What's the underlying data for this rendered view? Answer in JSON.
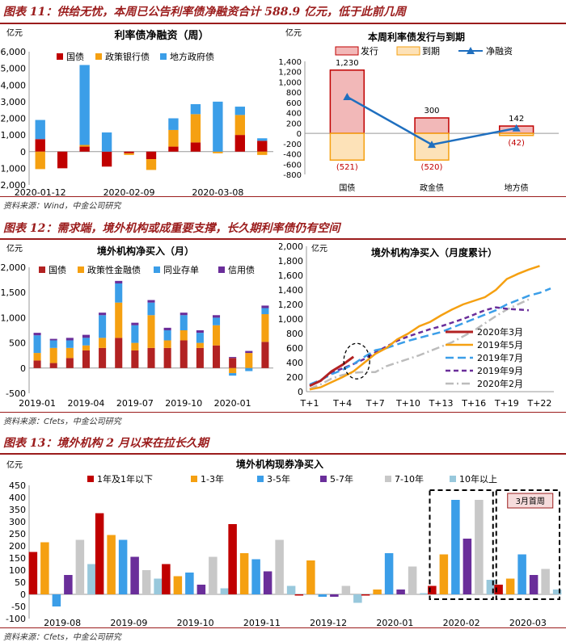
{
  "fig11": {
    "title": "图表 11：供给无忧，本周已公告利率债净融资合计 588.9 亿元，低于此前几周",
    "source": "资料来源：Wind，中金公司研究"
  },
  "fig12": {
    "title": "图表 12：需求端，境外机构或成重要支撑，长久期利率债仍有空间",
    "source": "资料来源：Cfets，中金公司研究"
  },
  "fig13": {
    "title": "图表 13：境外机构 2 月以来在拉长久期",
    "source": "资料来源：Cfets，中金公司研究"
  },
  "colors": {
    "red": "#c00000",
    "orange": "#f5a011",
    "blue": "#3b9ee8",
    "purple": "#6a2e9a",
    "gray": "#c8c8c8",
    "lightblue": "#98c8dc",
    "darkred": "#b22222",
    "grayline": "#bcbcbc"
  },
  "chart_data": [
    {
      "id": "c11a",
      "type": "bar",
      "stacked": true,
      "title": "利率债净融资（周）",
      "unit": "亿元",
      "ylim": [
        -2000,
        6000
      ],
      "yticks": [
        -2000,
        -1000,
        0,
        1000,
        2000,
        3000,
        4000,
        5000,
        6000
      ],
      "xticks": [
        "2020-01-12",
        "2020-02-09",
        "2020-03-08"
      ],
      "legend": [
        "国债",
        "政策银行债",
        "地方政府债"
      ],
      "series": [
        {
          "name": "国债",
          "values": [
            750,
            -1000,
            300,
            -900,
            -100,
            -450,
            300,
            550,
            0,
            1000,
            650
          ]
        },
        {
          "name": "政策银行债",
          "values": [
            -1050,
            0,
            100,
            0,
            -100,
            -650,
            1000,
            1700,
            -100,
            1200,
            -200
          ]
        },
        {
          "name": "地方政府债",
          "values": [
            1150,
            0,
            4800,
            1150,
            0,
            0,
            700,
            600,
            3000,
            500,
            150
          ]
        }
      ]
    },
    {
      "id": "c11b",
      "type": "bar+line",
      "title": "本周利率债发行与到期",
      "unit": "亿元",
      "ylim": [
        -800,
        1400
      ],
      "yticks": [
        -800,
        -600,
        -400,
        -200,
        0,
        200,
        400,
        600,
        800,
        1000,
        1200,
        1400
      ],
      "categories": [
        "国债",
        "政金债",
        "地方债"
      ],
      "issue": [
        1230,
        300,
        142
      ],
      "maturity": [
        -521,
        -520,
        -42
      ],
      "net": [
        709,
        -220,
        100
      ],
      "issue_labels": [
        "1,230",
        "300",
        "142"
      ],
      "maturity_labels": [
        "(521)",
        "(520)",
        "(42)"
      ],
      "legend": [
        "发行",
        "到期",
        "净融资"
      ]
    },
    {
      "id": "c12a",
      "type": "bar",
      "stacked": true,
      "title": "境外机构净买入（月）",
      "unit": "亿元",
      "ylim": [
        -500,
        2000
      ],
      "yticks": [
        -500,
        0,
        500,
        1000,
        1500,
        2000
      ],
      "xticks": [
        "2019-01",
        "2019-04",
        "2019-07",
        "2019-10",
        "2020-01"
      ],
      "legend": [
        "国债",
        "政策性金融债",
        "同业存单",
        "信用债"
      ],
      "series": [
        {
          "name": "国债",
          "values": [
            150,
            100,
            200,
            350,
            400,
            600,
            350,
            400,
            400,
            550,
            400,
            450,
            200,
            0,
            520
          ]
        },
        {
          "name": "政策性金融债",
          "values": [
            150,
            300,
            200,
            100,
            200,
            700,
            150,
            650,
            150,
            200,
            100,
            400,
            -100,
            300,
            550
          ]
        },
        {
          "name": "同业存单",
          "values": [
            350,
            150,
            150,
            150,
            450,
            380,
            350,
            250,
            200,
            300,
            200,
            150,
            -50,
            -60,
            120
          ]
        },
        {
          "name": "信用债",
          "values": [
            50,
            30,
            50,
            60,
            50,
            50,
            50,
            50,
            50,
            50,
            50,
            50,
            20,
            40,
            50
          ]
        }
      ]
    },
    {
      "id": "c12b",
      "type": "line",
      "title": "境外机构净买入（月度累计）",
      "unit": "亿元",
      "ylim": [
        0,
        2000
      ],
      "yticks": [
        0,
        200,
        400,
        600,
        800,
        1000,
        1200,
        1400,
        1600,
        1800,
        2000
      ],
      "xticks": [
        "T+1",
        "T+4",
        "T+7",
        "T+10",
        "T+13",
        "T+16",
        "T+19",
        "T+22"
      ],
      "series": [
        {
          "name": "2020年3月",
          "values": [
            80,
            150,
            280,
            370,
            480
          ]
        },
        {
          "name": "2019年5月",
          "values": [
            30,
            60,
            130,
            200,
            280,
            400,
            520,
            600,
            720,
            800,
            900,
            960,
            1050,
            1130,
            1200,
            1250,
            1300,
            1400,
            1550,
            1620,
            1680,
            1730
          ]
        },
        {
          "name": "2019年7月",
          "values": [
            100,
            160,
            240,
            300,
            380,
            480,
            570,
            600,
            650,
            700,
            740,
            780,
            820,
            880,
            940,
            1000,
            1060,
            1120,
            1200,
            1260,
            1320,
            1360,
            1420
          ]
        },
        {
          "name": "2019年9月",
          "values": [
            80,
            150,
            260,
            320,
            380,
            450,
            540,
            620,
            700,
            760,
            810,
            860,
            900,
            950,
            1000,
            1060,
            1120,
            1160,
            1140,
            1130,
            1120
          ]
        },
        {
          "name": "2020年2月",
          "values": [
            40,
            100,
            180,
            230,
            260,
            270,
            270,
            350,
            400,
            450,
            500,
            560,
            620,
            680,
            760,
            840,
            940,
            1040,
            1130,
            1200,
            1270
          ]
        }
      ]
    },
    {
      "id": "c13",
      "type": "bar",
      "title": "境外机构现券净买入",
      "unit": "亿元",
      "ylim": [
        -100,
        450
      ],
      "yticks": [
        -100,
        -50,
        0,
        50,
        100,
        150,
        200,
        250,
        300,
        350,
        400,
        450
      ],
      "categories": [
        "2019-08",
        "2019-09",
        "2019-10",
        "2019-11",
        "2019-12",
        "2020-01",
        "2020-02",
        "2020-03"
      ],
      "legend": [
        "1年及1年以下",
        "1-3年",
        "3-5年",
        "5-7年",
        "7-10年",
        "10年以上"
      ],
      "series": [
        {
          "name": "1年及1年以下",
          "values": [
            175,
            335,
            125,
            290,
            -5,
            -5,
            35,
            40
          ]
        },
        {
          "name": "1-3年",
          "values": [
            215,
            245,
            75,
            170,
            140,
            20,
            165,
            65
          ]
        },
        {
          "name": "3-5年",
          "values": [
            -50,
            225,
            90,
            145,
            -10,
            170,
            390,
            165
          ]
        },
        {
          "name": "5-7年",
          "values": [
            80,
            155,
            40,
            95,
            -10,
            20,
            230,
            80
          ]
        },
        {
          "name": "7-10年",
          "values": [
            225,
            100,
            155,
            225,
            35,
            115,
            390,
            105
          ]
        },
        {
          "name": "10年以上",
          "values": [
            125,
            65,
            25,
            35,
            -35,
            5,
            60,
            20
          ]
        }
      ],
      "annotation": "3月首周"
    }
  ]
}
